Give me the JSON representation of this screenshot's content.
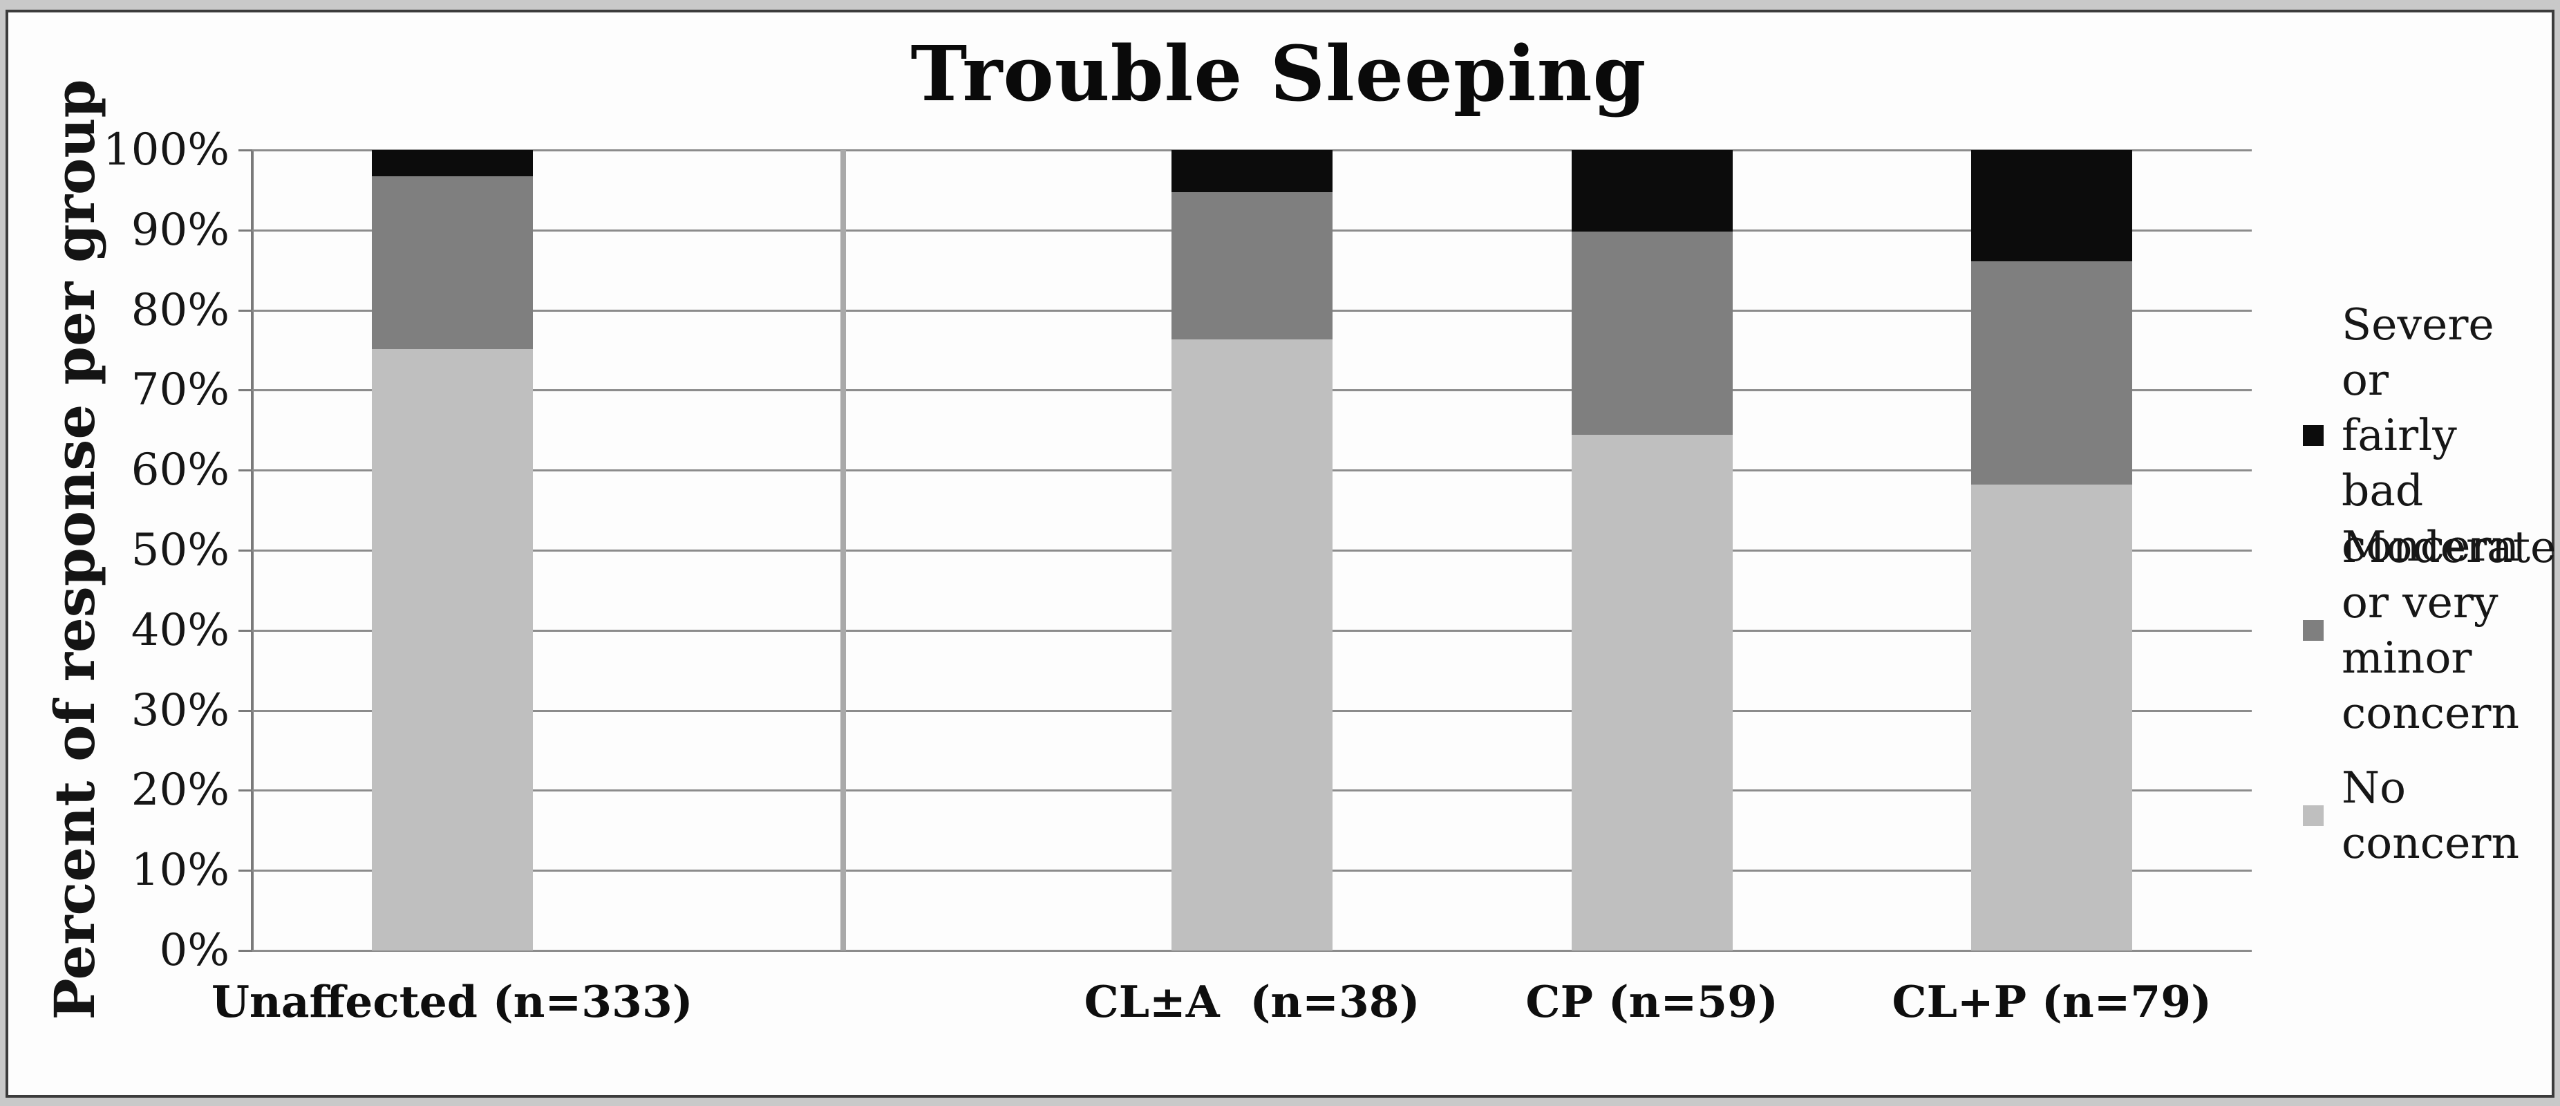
{
  "chart_data": {
    "type": "bar",
    "stacked": true,
    "title": "Trouble Sleeping",
    "ylabel": "Percent of response per group",
    "xlabel": "",
    "categories": [
      "Unaffected (n=333)",
      "CL±A  (n=38)",
      "CP (n=59)",
      "CL+P (n=79)"
    ],
    "series": [
      {
        "name": "No concern",
        "color": "#bfbfbf",
        "values": [
          75.1,
          76.3,
          64.4,
          58.2
        ]
      },
      {
        "name": "Moderate or very minor concern",
        "color": "#7f7f7f",
        "values": [
          21.6,
          18.4,
          25.4,
          27.9
        ]
      },
      {
        "name": "Severe or fairly bad concern",
        "color": "#0c0c0c",
        "values": [
          3.3,
          5.3,
          10.2,
          13.9
        ]
      }
    ],
    "ylim": [
      0,
      100
    ],
    "ytick_step": 10,
    "y_tick_labels": [
      "0%",
      "10%",
      "20%",
      "30%",
      "40%",
      "50%",
      "60%",
      "70%",
      "80%",
      "90%",
      "100%"
    ],
    "grid": true,
    "legend_position": "right",
    "divider_line_between_unaffected_and_cleft_groups": true
  },
  "legend": {
    "items": [
      {
        "label_lines": [
          "Severe or",
          "fairly bad",
          "concern"
        ],
        "color": "#0c0c0c"
      },
      {
        "label_lines": [
          "Moderate",
          "or very",
          "minor",
          "concern"
        ],
        "color": "#7f7f7f"
      },
      {
        "label_lines": [
          "No",
          "concern"
        ],
        "color": "#bfbfbf"
      }
    ]
  }
}
